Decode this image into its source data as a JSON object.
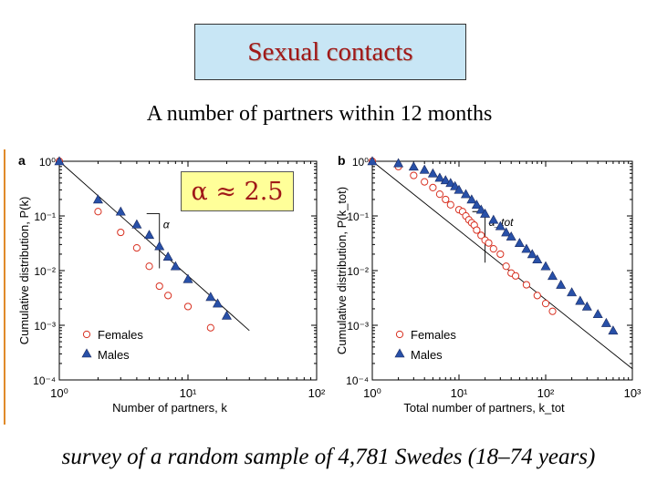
{
  "header": {
    "title": "Sexual contacts"
  },
  "subtitle": "A number of partners within 12 months",
  "alpha_box": "α ≈ 2.5",
  "caption": "survey of a random sample of 4,781 Swedes (18–74 years)",
  "colors": {
    "title": "#a01818",
    "title_box_bg": "#c8e6f5",
    "alpha_box_bg": "#ffff99",
    "female_marker": "#d83020",
    "male_marker": "#2850a8",
    "accent_rule": "#e08a2a"
  },
  "chart_data": [
    {
      "panel_label": "a",
      "type": "scatter",
      "xscale": "log",
      "yscale": "log",
      "xlim": [
        1,
        100
      ],
      "ylim": [
        0.0001,
        1
      ],
      "xlabel": "Number of partners, k",
      "ylabel": "Cumulative distribution, P(k)",
      "xticks": [
        "10⁰",
        "10¹",
        "10²"
      ],
      "yticks": [
        "10⁰",
        "10⁻¹",
        "10⁻²",
        "10⁻³",
        "10⁻⁴"
      ],
      "annotation": "α",
      "legend": {
        "position": "bottom-left",
        "entries": [
          "Females",
          "Males"
        ]
      },
      "series": [
        {
          "name": "Females",
          "marker": "open-circle",
          "points": [
            [
              1,
              1
            ],
            [
              2,
              0.12
            ],
            [
              3,
              0.05
            ],
            [
              4,
              0.026
            ],
            [
              5,
              0.012
            ],
            [
              6,
              0.0052
            ],
            [
              7,
              0.0035
            ],
            [
              10,
              0.0022
            ],
            [
              15,
              0.0009
            ]
          ]
        },
        {
          "name": "Males",
          "marker": "filled-triangle",
          "points": [
            [
              1,
              1
            ],
            [
              2,
              0.2
            ],
            [
              3,
              0.12
            ],
            [
              4,
              0.07
            ],
            [
              5,
              0.045
            ],
            [
              6,
              0.028
            ],
            [
              7,
              0.018
            ],
            [
              8,
              0.012
            ],
            [
              10,
              0.007
            ],
            [
              15,
              0.0033
            ],
            [
              17,
              0.0025
            ],
            [
              20,
              0.0015
            ]
          ]
        }
      ],
      "fit_line": {
        "points": [
          [
            1,
            1
          ],
          [
            30,
            0.0008
          ]
        ]
      }
    },
    {
      "panel_label": "b",
      "type": "scatter",
      "xscale": "log",
      "yscale": "log",
      "xlim": [
        1,
        1000
      ],
      "ylim": [
        0.0001,
        1
      ],
      "xlabel": "Total number of partners, k_tot",
      "ylabel": "Cumulative distribution, P(k_tot)",
      "xticks": [
        "10⁰",
        "10¹",
        "10²",
        "10³"
      ],
      "yticks": [
        "10⁰",
        "10⁻¹",
        "10⁻²",
        "10⁻³",
        "10⁻⁴"
      ],
      "annotation": "α_tot",
      "legend": {
        "position": "bottom-left",
        "entries": [
          "Females",
          "Males"
        ]
      },
      "series": [
        {
          "name": "Females",
          "marker": "open-circle",
          "points": [
            [
              1,
              1
            ],
            [
              2,
              0.8
            ],
            [
              3,
              0.55
            ],
            [
              4,
              0.42
            ],
            [
              5,
              0.33
            ],
            [
              6,
              0.25
            ],
            [
              7,
              0.2
            ],
            [
              8,
              0.16
            ],
            [
              10,
              0.13
            ],
            [
              11,
              0.12
            ],
            [
              12,
              0.1
            ],
            [
              13,
              0.085
            ],
            [
              14,
              0.075
            ],
            [
              15,
              0.068
            ],
            [
              16,
              0.055
            ],
            [
              18,
              0.044
            ],
            [
              20,
              0.036
            ],
            [
              22,
              0.032
            ],
            [
              25,
              0.025
            ],
            [
              30,
              0.02
            ],
            [
              35,
              0.012
            ],
            [
              40,
              0.009
            ],
            [
              45,
              0.008
            ],
            [
              60,
              0.0055
            ],
            [
              80,
              0.0035
            ],
            [
              100,
              0.0025
            ],
            [
              120,
              0.0018
            ]
          ]
        },
        {
          "name": "Males",
          "marker": "filled-triangle",
          "points": [
            [
              1,
              1
            ],
            [
              2,
              0.92
            ],
            [
              3,
              0.8
            ],
            [
              4,
              0.7
            ],
            [
              5,
              0.6
            ],
            [
              6,
              0.5
            ],
            [
              7,
              0.45
            ],
            [
              8,
              0.4
            ],
            [
              9,
              0.35
            ],
            [
              10,
              0.3
            ],
            [
              12,
              0.25
            ],
            [
              14,
              0.2
            ],
            [
              16,
              0.16
            ],
            [
              18,
              0.13
            ],
            [
              20,
              0.11
            ],
            [
              25,
              0.085
            ],
            [
              30,
              0.065
            ],
            [
              35,
              0.05
            ],
            [
              40,
              0.042
            ],
            [
              50,
              0.032
            ],
            [
              60,
              0.025
            ],
            [
              70,
              0.02
            ],
            [
              80,
              0.016
            ],
            [
              100,
              0.012
            ],
            [
              120,
              0.008
            ],
            [
              150,
              0.0055
            ],
            [
              200,
              0.004
            ],
            [
              250,
              0.0028
            ],
            [
              300,
              0.0022
            ],
            [
              400,
              0.0016
            ],
            [
              500,
              0.0011
            ],
            [
              600,
              0.0008
            ]
          ]
        }
      ],
      "fit_line": {
        "points": [
          [
            1,
            1
          ],
          [
            1000,
            0.00016
          ]
        ]
      }
    }
  ]
}
